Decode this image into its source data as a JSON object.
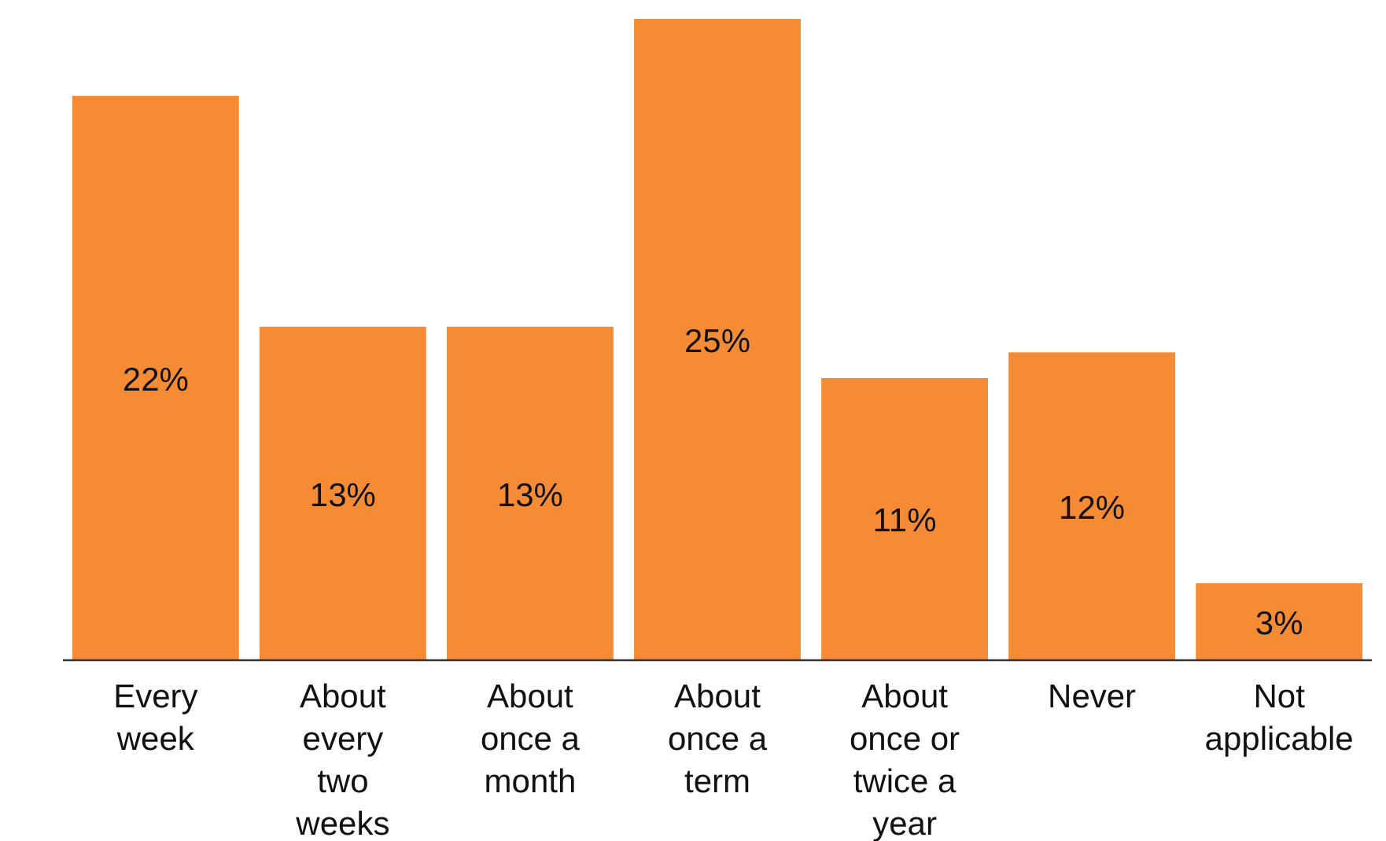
{
  "chart_data": {
    "type": "bar",
    "categories": [
      "Every week",
      "About every two weeks",
      "About once a month",
      "About once a term",
      "About once or twice a year",
      "Never",
      "Not applicable"
    ],
    "values": [
      22,
      13,
      13,
      25,
      11,
      12,
      3
    ],
    "color": "#f58c35",
    "value_labels": [
      "22%",
      "13%",
      "13%",
      "25%",
      "11%",
      "12%",
      "3%"
    ]
  }
}
